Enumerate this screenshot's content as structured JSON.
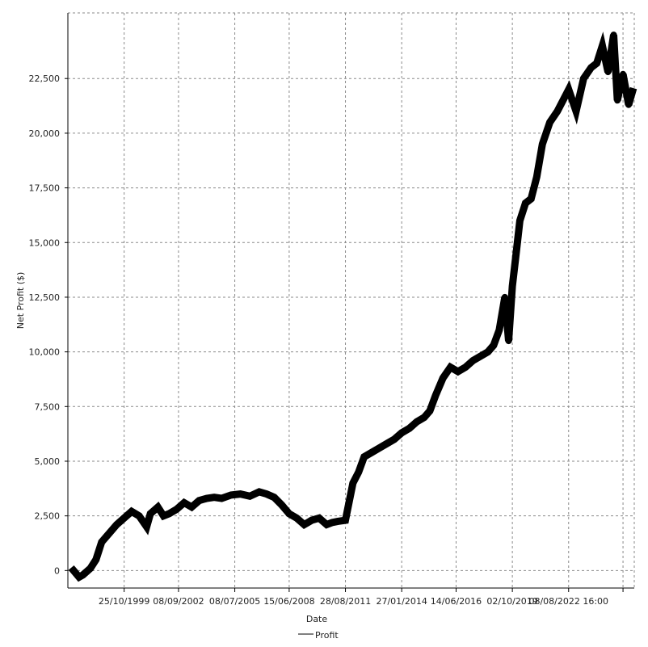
{
  "chart_data": {
    "type": "line",
    "title": "",
    "xlabel": "Date",
    "ylabel": "Net Profit ($)",
    "ylim": [
      -800,
      25500
    ],
    "xlim": [
      1996.8,
      2027.0
    ],
    "grid": true,
    "legend_position": "bottom",
    "y_ticks": [
      {
        "value": 0,
        "label": "0"
      },
      {
        "value": 2500,
        "label": "2,500"
      },
      {
        "value": 5000,
        "label": "5,000"
      },
      {
        "value": 7500,
        "label": "7,500"
      },
      {
        "value": 10000,
        "label": "10,000"
      },
      {
        "value": 12500,
        "label": "12,500"
      },
      {
        "value": 15000,
        "label": "15,000"
      },
      {
        "value": 17500,
        "label": "17,500"
      },
      {
        "value": 20000,
        "label": "20,000"
      },
      {
        "value": 22500,
        "label": "22,500"
      }
    ],
    "x_ticks": [
      {
        "value": 1999.8,
        "label": "25/10/1999"
      },
      {
        "value": 2002.7,
        "label": "08/09/2002"
      },
      {
        "value": 2005.7,
        "label": "08/07/2005"
      },
      {
        "value": 2008.6,
        "label": "15/06/2008"
      },
      {
        "value": 2011.6,
        "label": "28/08/2011"
      },
      {
        "value": 2014.6,
        "label": "27/01/2014"
      },
      {
        "value": 2017.5,
        "label": "14/06/2016"
      },
      {
        "value": 2020.5,
        "label": "02/10/2019"
      },
      {
        "value": 2023.5,
        "label": "08/08/2022 16:00"
      },
      {
        "value": 2026.4,
        "label": ""
      }
    ],
    "series": [
      {
        "name": "Profit",
        "color": "#000000",
        "x": [
          1997.1,
          1997.4,
          1997.6,
          1998.0,
          1998.3,
          1998.6,
          1999.0,
          1999.4,
          1999.8,
          2000.2,
          2000.6,
          2001.0,
          2001.2,
          2001.6,
          2001.9,
          2002.2,
          2002.6,
          2003.0,
          2003.4,
          2003.8,
          2004.2,
          2004.6,
          2005.0,
          2005.5,
          2006.0,
          2006.5,
          2007.0,
          2007.4,
          2007.8,
          2008.2,
          2008.6,
          2009.0,
          2009.4,
          2009.8,
          2010.2,
          2010.6,
          2010.9,
          2011.2,
          2011.6,
          2012.0,
          2012.3,
          2012.6,
          2013.0,
          2013.4,
          2013.8,
          2014.2,
          2014.6,
          2015.0,
          2015.4,
          2015.8,
          2016.1,
          2016.4,
          2016.8,
          2017.2,
          2017.6,
          2018.0,
          2018.4,
          2018.8,
          2019.2,
          2019.5,
          2019.8,
          2020.1,
          2020.3,
          2020.5,
          2020.7,
          2020.9,
          2021.2,
          2021.5,
          2021.8,
          2022.1,
          2022.5,
          2022.9,
          2023.2,
          2023.5,
          2023.9,
          2024.3,
          2024.7,
          2025.0,
          2025.3,
          2025.6,
          2025.9,
          2026.1,
          2026.4,
          2026.7,
          2026.9
        ],
        "values": [
          0,
          -300,
          -200,
          100,
          500,
          1300,
          1700,
          2100,
          2400,
          2700,
          2500,
          2000,
          2600,
          2900,
          2500,
          2600,
          2800,
          3100,
          2900,
          3200,
          3300,
          3350,
          3300,
          3450,
          3500,
          3400,
          3600,
          3500,
          3350,
          3000,
          2600,
          2400,
          2100,
          2300,
          2400,
          2100,
          2200,
          2250,
          2300,
          4000,
          4500,
          5200,
          5400,
          5600,
          5800,
          6000,
          6300,
          6500,
          6800,
          7000,
          7300,
          8000,
          8800,
          9300,
          9100,
          9300,
          9600,
          9800,
          10000,
          10300,
          11000,
          12500,
          10500,
          13000,
          14500,
          16000,
          16800,
          17000,
          18000,
          19500,
          20500,
          21000,
          21500,
          22000,
          21000,
          22500,
          23000,
          23200,
          24000,
          22800,
          24500,
          21500,
          22700,
          21300,
          21900
        ]
      }
    ]
  }
}
